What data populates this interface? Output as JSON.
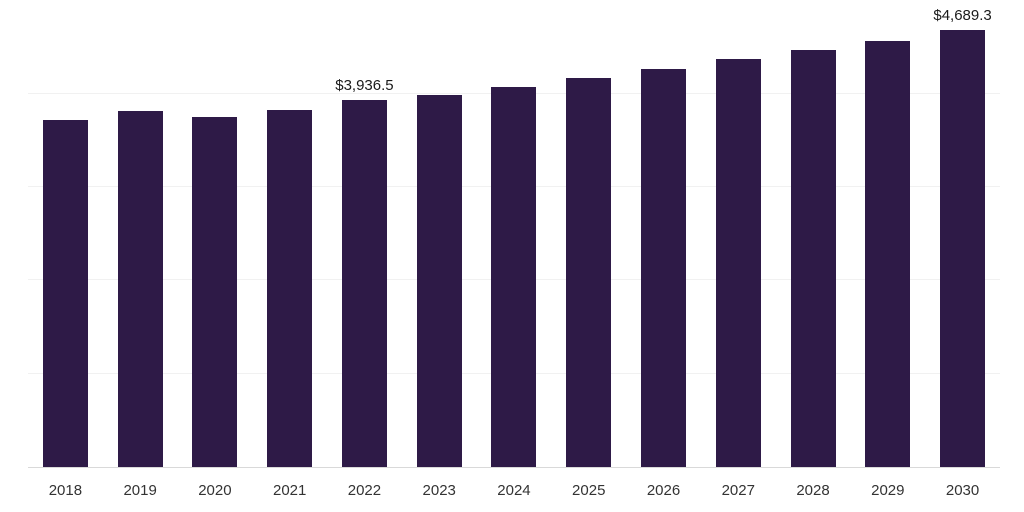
{
  "chart_data": {
    "type": "bar",
    "title": "",
    "xlabel": "",
    "ylabel": "",
    "categories": [
      "2018",
      "2019",
      "2020",
      "2021",
      "2022",
      "2023",
      "2024",
      "2025",
      "2026",
      "2027",
      "2028",
      "2029",
      "2030"
    ],
    "values": [
      3720.0,
      3815.0,
      3750.0,
      3825.0,
      3936.5,
      3990.0,
      4070.0,
      4175.0,
      4270.0,
      4370.0,
      4470.0,
      4570.0,
      4689.3
    ],
    "ylim": [
      0,
      4900
    ],
    "grid": "horizontal",
    "gridline_values": [
      1000,
      2000,
      3000,
      4000
    ],
    "bar_color": "#2e1a47",
    "axis_line_color": "#d9d9d9",
    "gridline_color": "#f1f1f1",
    "annotations": [
      {
        "category": "2022",
        "label": "$3,936.5"
      },
      {
        "category": "2030",
        "label": "$4,689.3"
      }
    ],
    "legend": "none"
  }
}
